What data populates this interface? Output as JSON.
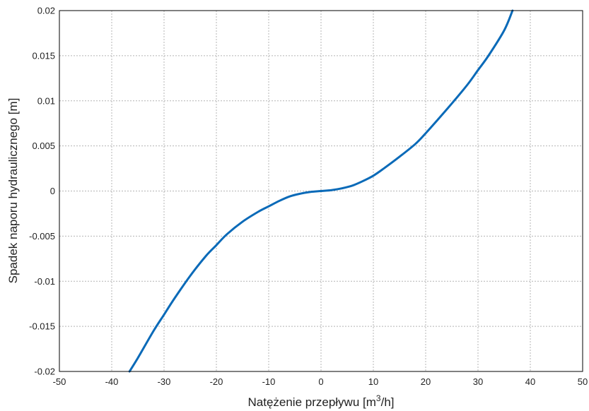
{
  "chart_data": {
    "type": "line",
    "xlabel": "Natężenie przepływu [m",
    "xlabel_sup": "3",
    "xlabel_tail": "/h]",
    "ylabel": "Spadek naporu hydraulicznego [m]",
    "xlim": [
      -50,
      50
    ],
    "ylim": [
      -0.02,
      0.02
    ],
    "grid": true,
    "x_ticks": [
      -50,
      -40,
      -30,
      -20,
      -10,
      0,
      10,
      20,
      30,
      40,
      50
    ],
    "y_ticks": [
      -0.02,
      -0.015,
      -0.01,
      -0.005,
      0,
      0.005,
      0.01,
      0.015,
      0.02
    ],
    "x_tick_labels": [
      "-50",
      "-40",
      "-30",
      "-20",
      "-10",
      "0",
      "10",
      "20",
      "30",
      "40",
      "50"
    ],
    "y_tick_labels": [
      "-0.02",
      "-0.015",
      "-0.01",
      "-0.005",
      "0",
      "0.005",
      "0.01",
      "0.015",
      "0.02"
    ],
    "line_color": "#0a6ab8",
    "series": [
      {
        "x": [
          -36.6,
          -35,
          -32,
          -30,
          -28,
          -25,
          -22,
          -20,
          -18,
          -15,
          -12,
          -10,
          -8,
          -6,
          -4,
          -2,
          0,
          2,
          4,
          6,
          8,
          10,
          12,
          15,
          18,
          20,
          22,
          25,
          28,
          30,
          32,
          35,
          36.6
        ],
        "y": [
          -0.02,
          -0.0185,
          -0.0155,
          -0.0137,
          -0.0119,
          -0.0094,
          -0.0072,
          -0.006,
          -0.0048,
          -0.0034,
          -0.0023,
          -0.0017,
          -0.0011,
          -0.0006,
          -0.0003,
          -0.0001,
          0,
          0.0001,
          0.0003,
          0.0006,
          0.0011,
          0.0017,
          0.0025,
          0.0038,
          0.0052,
          0.0064,
          0.0077,
          0.0097,
          0.0118,
          0.0134,
          0.015,
          0.0178,
          0.02
        ]
      }
    ]
  }
}
